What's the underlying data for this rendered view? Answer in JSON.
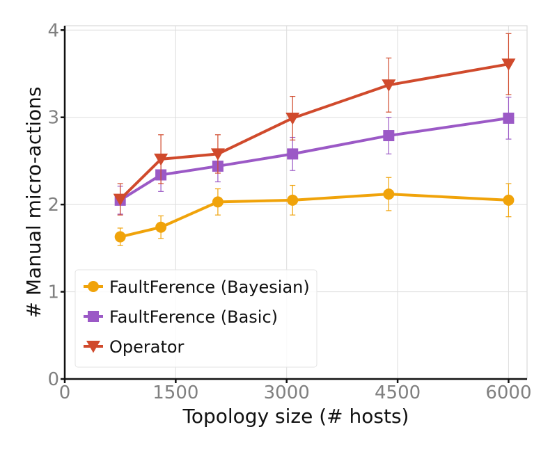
{
  "chart_data": {
    "type": "line",
    "xlabel": "Topology size (# hosts)",
    "ylabel": "# Manual micro-actions",
    "xlim": [
      0,
      6250
    ],
    "ylim": [
      0,
      4.05
    ],
    "xticks": [
      0,
      1500,
      3000,
      4500,
      6000
    ],
    "yticks": [
      0,
      1,
      2,
      3,
      4
    ],
    "xtick_labels": [
      "0",
      "1500",
      "3000",
      "4500",
      "6000"
    ],
    "ytick_labels": [
      "0",
      "1",
      "2",
      "3",
      "4"
    ],
    "grid": true,
    "legend": "bottom-left",
    "series": [
      {
        "name": "FaultFerence (Bayesian)",
        "color": "#f0a30a",
        "marker": "circle",
        "x": [
          750,
          1300,
          2070,
          3080,
          4380,
          6000
        ],
        "y": [
          1.63,
          1.74,
          2.03,
          2.05,
          2.12,
          2.05
        ],
        "err": [
          0.1,
          0.13,
          0.15,
          0.17,
          0.19,
          0.19
        ]
      },
      {
        "name": "FaultFerence (Basic)",
        "color": "#9b59c6",
        "marker": "square",
        "x": [
          750,
          1300,
          2070,
          3080,
          4380,
          6000
        ],
        "y": [
          2.05,
          2.34,
          2.44,
          2.58,
          2.79,
          2.99
        ],
        "err": [
          0.16,
          0.19,
          0.18,
          0.19,
          0.21,
          0.24
        ]
      },
      {
        "name": "Operator",
        "color": "#d04a2c",
        "marker": "triangle-down",
        "x": [
          750,
          1300,
          2070,
          3080,
          4380,
          6000
        ],
        "y": [
          2.06,
          2.52,
          2.58,
          2.99,
          3.37,
          3.61
        ],
        "err": [
          0.18,
          0.28,
          0.22,
          0.25,
          0.31,
          0.35
        ]
      }
    ]
  }
}
